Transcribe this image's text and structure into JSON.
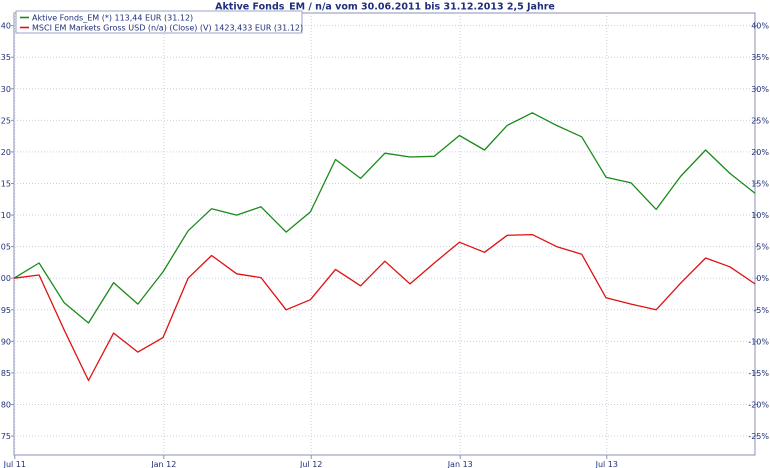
{
  "chart_data": {
    "type": "line",
    "title": "Aktive Fonds_EM / n/a vom 30.06.2011 bis 31.12.2013 2,5 Jahre",
    "xlabel": "",
    "ylabel": "",
    "x_ticks": [
      "Jul 11",
      "Jan 12",
      "Jul 12",
      "Jan 13",
      "Jul 13"
    ],
    "x_tick_dates": [
      "2011-07-01",
      "2012-01-01",
      "2012-07-01",
      "2013-01-01",
      "2013-07-01"
    ],
    "xlim": [
      "2011-06-30",
      "2013-12-31"
    ],
    "ylim_left": [
      72,
      142
    ],
    "left_ticks": [
      "75",
      "80",
      "85",
      "90",
      "95",
      "100",
      "105",
      "110",
      "115",
      "120",
      "125",
      "130",
      "135",
      "140"
    ],
    "left_tick_values": [
      75,
      80,
      85,
      90,
      95,
      100,
      105,
      110,
      115,
      120,
      125,
      130,
      135,
      140
    ],
    "right_ticks": [
      "-25%",
      "-20%",
      "-15%",
      "-10%",
      "-5%",
      "0%",
      "5%",
      "10%",
      "15%",
      "20%",
      "25%",
      "30%",
      "35%",
      "40%"
    ],
    "right_tick_values": [
      -25,
      -20,
      -15,
      -10,
      -5,
      0,
      5,
      10,
      15,
      20,
      25,
      30,
      35,
      40
    ],
    "grid": true,
    "legend_position": "top-left",
    "x": [
      "2011-06-30",
      "2011-07-31",
      "2011-08-31",
      "2011-09-30",
      "2011-10-31",
      "2011-11-30",
      "2011-12-31",
      "2012-01-31",
      "2012-02-29",
      "2012-03-31",
      "2012-04-30",
      "2012-05-31",
      "2012-06-30",
      "2012-07-31",
      "2012-08-31",
      "2012-09-30",
      "2012-10-31",
      "2012-11-30",
      "2012-12-31",
      "2013-01-31",
      "2013-02-28",
      "2013-03-31",
      "2013-04-30",
      "2013-05-31",
      "2013-06-30",
      "2013-07-31",
      "2013-08-31",
      "2013-09-30",
      "2013-10-31",
      "2013-11-30",
      "2013-12-31"
    ],
    "series": [
      {
        "name": "Aktive Fonds_EM (*) 113,44 EUR (31.12)",
        "color": "#1a8a1a",
        "values": [
          100.0,
          102.4,
          96.1,
          92.9,
          99.3,
          95.9,
          101.0,
          107.5,
          111.0,
          110.0,
          111.3,
          107.3,
          110.5,
          118.8,
          115.8,
          119.8,
          119.2,
          119.3,
          122.6,
          120.3,
          124.2,
          126.2,
          124.2,
          122.4,
          116.0,
          115.1,
          110.9,
          116.1,
          120.3,
          116.6,
          113.44
        ]
      },
      {
        "name": "MSCI EM Markets Gross USD (n/a) (Close) (V) 1423,433 EUR (31.12)",
        "color": "#e01010",
        "values": [
          100.0,
          100.5,
          91.8,
          83.8,
          91.3,
          88.3,
          90.6,
          100.0,
          103.6,
          100.7,
          100.1,
          95.0,
          96.6,
          101.4,
          98.8,
          102.7,
          99.1,
          102.4,
          105.7,
          104.1,
          106.8,
          106.9,
          105.0,
          103.8,
          96.9,
          95.9,
          95.0,
          99.2,
          103.2,
          101.8,
          99.1
        ]
      }
    ]
  }
}
